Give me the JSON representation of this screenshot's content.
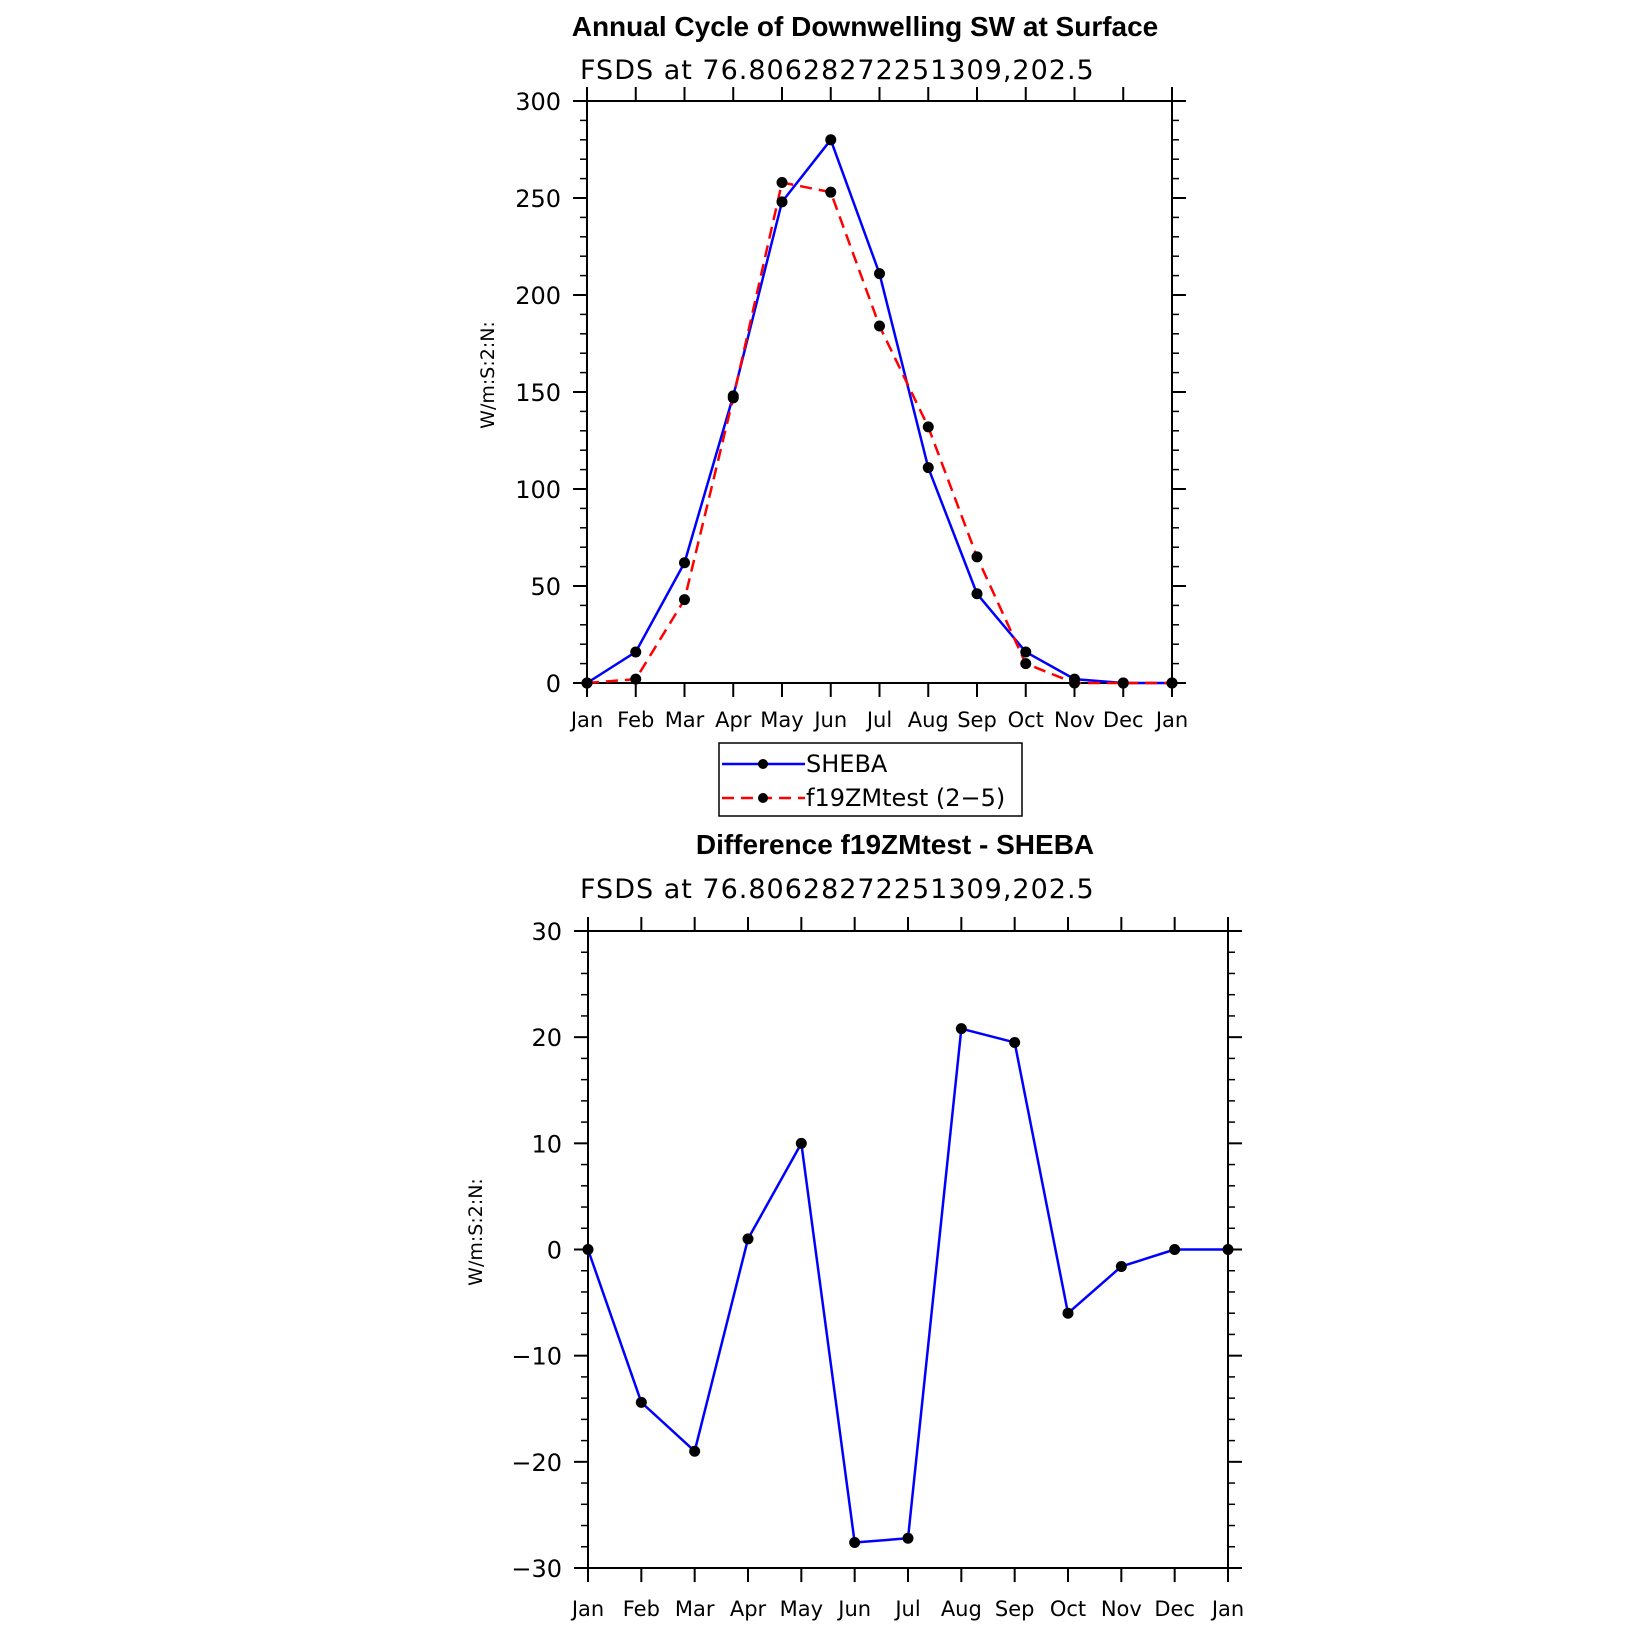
{
  "chart_data": [
    {
      "type": "line",
      "title": "Annual Cycle of Downwelling SW at Surface",
      "subtitle": "FSDS at 76.80628272251309,202.5",
      "ylabel": "W/m:S:2:N:",
      "xlabel": "",
      "categories": [
        "Jan",
        "Feb",
        "Mar",
        "Apr",
        "May",
        "Jun",
        "Jul",
        "Aug",
        "Sep",
        "Oct",
        "Nov",
        "Dec",
        "Jan"
      ],
      "ylim": [
        0,
        300
      ],
      "yticks": [
        "0",
        "50",
        "100",
        "150",
        "200",
        "250",
        "300"
      ],
      "grid": false,
      "legend_position": "bottom",
      "series": [
        {
          "name": "SHEBA",
          "color": "#0000ff",
          "dash": "solid",
          "values": [
            0,
            16,
            62,
            148,
            248,
            280,
            211,
            111,
            46,
            16,
            2,
            0,
            0
          ]
        },
        {
          "name": "f19ZMtest (2−5)",
          "color": "#ff0000",
          "dash": "dashed",
          "values": [
            0,
            2,
            43,
            147,
            258,
            253,
            184,
            132,
            65,
            10,
            0,
            0,
            0
          ]
        }
      ]
    },
    {
      "type": "line",
      "title": "Difference f19ZMtest - SHEBA",
      "subtitle": "FSDS at 76.80628272251309,202.5",
      "ylabel": "W/m:S:2:N:",
      "xlabel": "",
      "categories": [
        "Jan",
        "Feb",
        "Mar",
        "Apr",
        "May",
        "Jun",
        "Jul",
        "Aug",
        "Sep",
        "Oct",
        "Nov",
        "Dec",
        "Jan"
      ],
      "ylim": [
        -30,
        30
      ],
      "yticks": [
        "−30",
        "−20",
        "−10",
        "0",
        "10",
        "20",
        "30"
      ],
      "grid": false,
      "series": [
        {
          "color": "#0000ff",
          "dash": "solid",
          "values": [
            0,
            -14.4,
            -19,
            1,
            10,
            -27.6,
            -27.2,
            20.8,
            19.5,
            -6,
            -1.6,
            0,
            0
          ]
        }
      ]
    }
  ]
}
